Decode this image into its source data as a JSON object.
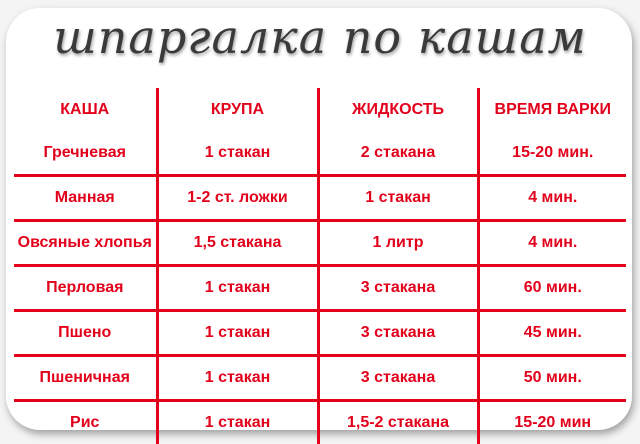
{
  "title": "шпаргалка по кашам",
  "colors": {
    "text": "#e3001b",
    "title": "#3a3a3a",
    "background": "#ffffff"
  },
  "table": {
    "headers": [
      "КАША",
      "КРУПА",
      "ЖИДКОСТЬ",
      "ВРЕМЯ ВАРКИ"
    ],
    "rows": [
      [
        "Гречневая",
        "1 стакан",
        "2 стакана",
        "15-20 мин."
      ],
      [
        "Манная",
        "1-2 ст. ложки",
        "1 стакан",
        "4 мин."
      ],
      [
        "Овсяные хлопья",
        "1,5 стакана",
        "1 литр",
        "4 мин."
      ],
      [
        "Перловая",
        "1 стакан",
        "3 стакана",
        "60 мин."
      ],
      [
        "Пшено",
        "1 стакан",
        "3 стакана",
        "45 мин."
      ],
      [
        "Пшеничная",
        "1 стакан",
        "3 стакана",
        "50 мин."
      ],
      [
        "Рис",
        "1 стакан",
        "1,5-2 стакана",
        "15-20 мин"
      ]
    ]
  }
}
